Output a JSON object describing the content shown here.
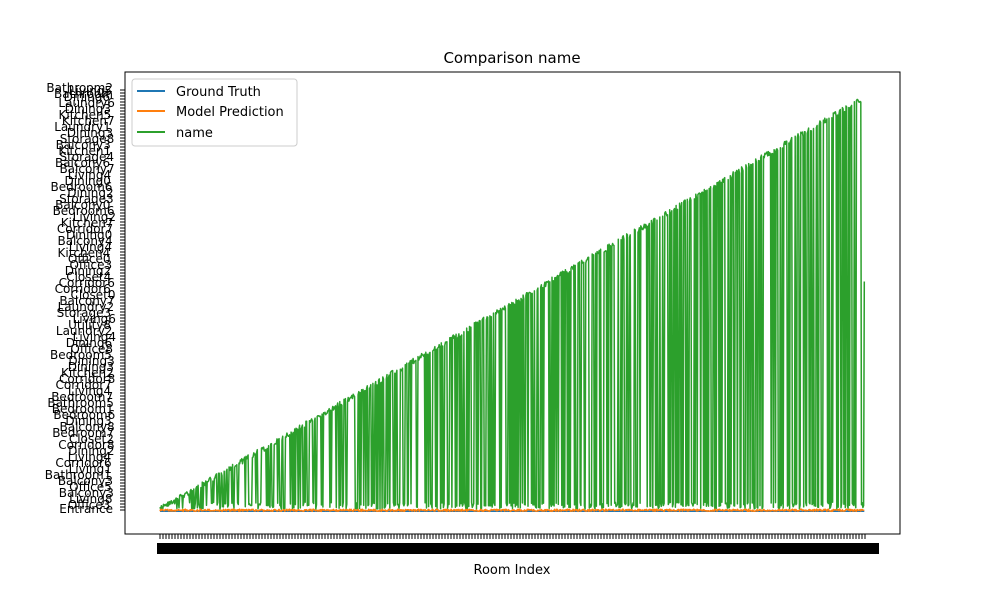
{
  "chart_data": {
    "type": "line",
    "title": "Comparison name",
    "xlabel": "Room Index",
    "ylabel": "",
    "legend_position": "top-left",
    "grid": false,
    "x_range": [
      0,
      1000
    ],
    "y_category_count": 600,
    "y_tick_labels_visible": [
      "Entrance",
      "Bathroom",
      "Bathroom2"
    ],
    "note_ticks": "x and y tick labels are densely overlapping and unreadable in the original",
    "series": [
      {
        "name": "Ground Truth",
        "color": "#1f77b4"
      },
      {
        "name": "Model Prediction",
        "color": "#ff7f0e"
      },
      {
        "name": "name",
        "color": "#2ca02c"
      }
    ]
  }
}
